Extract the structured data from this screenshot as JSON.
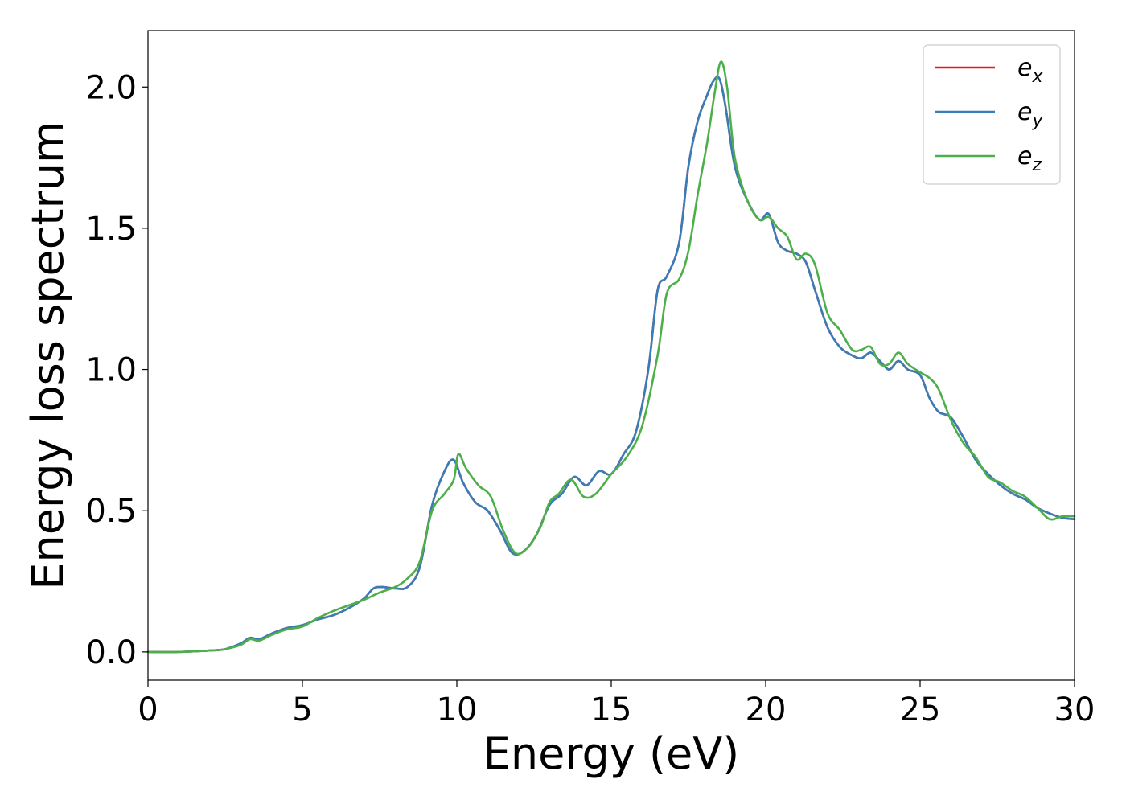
{
  "chart_data": {
    "type": "line",
    "xlabel": "Energy (eV)",
    "ylabel": "Energy loss spectrum",
    "xlim": [
      0,
      30
    ],
    "ylim": [
      -0.1,
      2.2
    ],
    "xticks": [
      0,
      5,
      10,
      15,
      20,
      25,
      30
    ],
    "xtick_labels": [
      "0",
      "5",
      "10",
      "15",
      "20",
      "25",
      "30"
    ],
    "yticks": [
      0.0,
      0.5,
      1.0,
      1.5,
      2.0
    ],
    "ytick_labels": [
      "0.0",
      "0.5",
      "1.0",
      "1.5",
      "2.0"
    ],
    "grid": false,
    "legend_position": "upper-right",
    "series": [
      {
        "name": "e_x",
        "label_base": "e",
        "label_sub": "x",
        "color": "#e41a1c",
        "x": [
          0,
          1,
          2,
          2.5,
          3,
          3.3,
          3.6,
          4,
          4.5,
          5,
          5.5,
          6,
          6.5,
          7,
          7.3,
          7.6,
          8,
          8.4,
          8.8,
          9.2,
          9.6,
          9.9,
          10.2,
          10.6,
          11,
          11.4,
          11.8,
          12.2,
          12.6,
          13,
          13.4,
          13.8,
          14.2,
          14.6,
          15,
          15.4,
          15.8,
          16.2,
          16.5,
          16.8,
          17.2,
          17.5,
          17.8,
          18.1,
          18.3,
          18.5,
          18.7,
          19,
          19.4,
          19.8,
          20.1,
          20.4,
          20.7,
          21,
          21.3,
          21.6,
          22,
          22.4,
          22.8,
          23.1,
          23.4,
          23.7,
          24,
          24.3,
          24.6,
          25,
          25.3,
          25.6,
          26,
          26.4,
          26.8,
          27.2,
          27.6,
          28,
          28.4,
          28.8,
          29.2,
          29.6,
          30
        ],
        "y": [
          0.0,
          0.0,
          0.005,
          0.01,
          0.03,
          0.05,
          0.045,
          0.065,
          0.085,
          0.095,
          0.115,
          0.13,
          0.155,
          0.19,
          0.225,
          0.23,
          0.225,
          0.23,
          0.3,
          0.52,
          0.64,
          0.68,
          0.6,
          0.53,
          0.5,
          0.43,
          0.35,
          0.36,
          0.42,
          0.52,
          0.56,
          0.62,
          0.59,
          0.64,
          0.63,
          0.7,
          0.78,
          1.0,
          1.28,
          1.33,
          1.45,
          1.72,
          1.88,
          1.97,
          2.02,
          2.03,
          1.93,
          1.72,
          1.6,
          1.53,
          1.55,
          1.45,
          1.42,
          1.41,
          1.38,
          1.28,
          1.15,
          1.08,
          1.05,
          1.04,
          1.06,
          1.03,
          1.0,
          1.03,
          1.0,
          0.98,
          0.9,
          0.85,
          0.83,
          0.76,
          0.68,
          0.63,
          0.59,
          0.56,
          0.54,
          0.51,
          0.49,
          0.475,
          0.47
        ]
      },
      {
        "name": "e_y",
        "label_base": "e",
        "label_sub": "y",
        "color": "#377eb8",
        "x": [
          0,
          1,
          2,
          2.5,
          3,
          3.3,
          3.6,
          4,
          4.5,
          5,
          5.5,
          6,
          6.5,
          7,
          7.3,
          7.6,
          8,
          8.4,
          8.8,
          9.2,
          9.6,
          9.9,
          10.2,
          10.6,
          11,
          11.4,
          11.8,
          12.2,
          12.6,
          13,
          13.4,
          13.8,
          14.2,
          14.6,
          15,
          15.4,
          15.8,
          16.2,
          16.5,
          16.8,
          17.2,
          17.5,
          17.8,
          18.1,
          18.3,
          18.5,
          18.7,
          19,
          19.4,
          19.8,
          20.1,
          20.4,
          20.7,
          21,
          21.3,
          21.6,
          22,
          22.4,
          22.8,
          23.1,
          23.4,
          23.7,
          24,
          24.3,
          24.6,
          25,
          25.3,
          25.6,
          26,
          26.4,
          26.8,
          27.2,
          27.6,
          28,
          28.4,
          28.8,
          29.2,
          29.6,
          30
        ],
        "y": [
          0.0,
          0.0,
          0.005,
          0.01,
          0.03,
          0.05,
          0.045,
          0.065,
          0.085,
          0.095,
          0.115,
          0.13,
          0.155,
          0.19,
          0.225,
          0.23,
          0.225,
          0.23,
          0.3,
          0.52,
          0.64,
          0.68,
          0.6,
          0.53,
          0.5,
          0.43,
          0.35,
          0.36,
          0.42,
          0.52,
          0.56,
          0.62,
          0.59,
          0.64,
          0.63,
          0.7,
          0.78,
          1.0,
          1.28,
          1.33,
          1.45,
          1.72,
          1.88,
          1.97,
          2.02,
          2.03,
          1.93,
          1.72,
          1.6,
          1.53,
          1.55,
          1.45,
          1.42,
          1.41,
          1.38,
          1.28,
          1.15,
          1.08,
          1.05,
          1.04,
          1.06,
          1.03,
          1.0,
          1.03,
          1.0,
          0.98,
          0.9,
          0.85,
          0.83,
          0.76,
          0.68,
          0.63,
          0.59,
          0.56,
          0.54,
          0.51,
          0.49,
          0.475,
          0.47
        ]
      },
      {
        "name": "e_z",
        "label_base": "e",
        "label_sub": "z",
        "color": "#4daf4a",
        "x": [
          0,
          1,
          2,
          2.5,
          3,
          3.3,
          3.6,
          4,
          4.5,
          5,
          5.5,
          6,
          6.5,
          7,
          7.5,
          8,
          8.4,
          8.8,
          9.2,
          9.6,
          9.9,
          10.05,
          10.3,
          10.7,
          11.1,
          11.5,
          11.9,
          12.3,
          12.7,
          13,
          13.3,
          13.7,
          14.1,
          14.5,
          15,
          15.5,
          16,
          16.5,
          16.8,
          17.2,
          17.5,
          17.8,
          18.1,
          18.35,
          18.55,
          18.75,
          19,
          19.4,
          19.8,
          20.1,
          20.4,
          20.7,
          21,
          21.3,
          21.6,
          22,
          22.4,
          22.8,
          23.1,
          23.4,
          23.7,
          24,
          24.3,
          24.6,
          25,
          25.3,
          25.6,
          26,
          26.4,
          26.8,
          27.2,
          27.6,
          28,
          28.4,
          28.8,
          29.2,
          29.6,
          30
        ],
        "y": [
          0.0,
          0.0,
          0.005,
          0.01,
          0.025,
          0.045,
          0.04,
          0.06,
          0.08,
          0.09,
          0.12,
          0.145,
          0.165,
          0.185,
          0.21,
          0.23,
          0.26,
          0.32,
          0.5,
          0.56,
          0.61,
          0.7,
          0.65,
          0.59,
          0.55,
          0.43,
          0.35,
          0.37,
          0.44,
          0.53,
          0.56,
          0.61,
          0.55,
          0.56,
          0.63,
          0.69,
          0.8,
          1.05,
          1.27,
          1.32,
          1.42,
          1.62,
          1.8,
          1.98,
          2.09,
          2.0,
          1.75,
          1.6,
          1.53,
          1.54,
          1.5,
          1.47,
          1.39,
          1.41,
          1.37,
          1.2,
          1.14,
          1.07,
          1.07,
          1.08,
          1.02,
          1.02,
          1.06,
          1.02,
          0.99,
          0.97,
          0.93,
          0.82,
          0.74,
          0.69,
          0.62,
          0.6,
          0.57,
          0.55,
          0.51,
          0.47,
          0.48,
          0.48
        ]
      }
    ]
  }
}
